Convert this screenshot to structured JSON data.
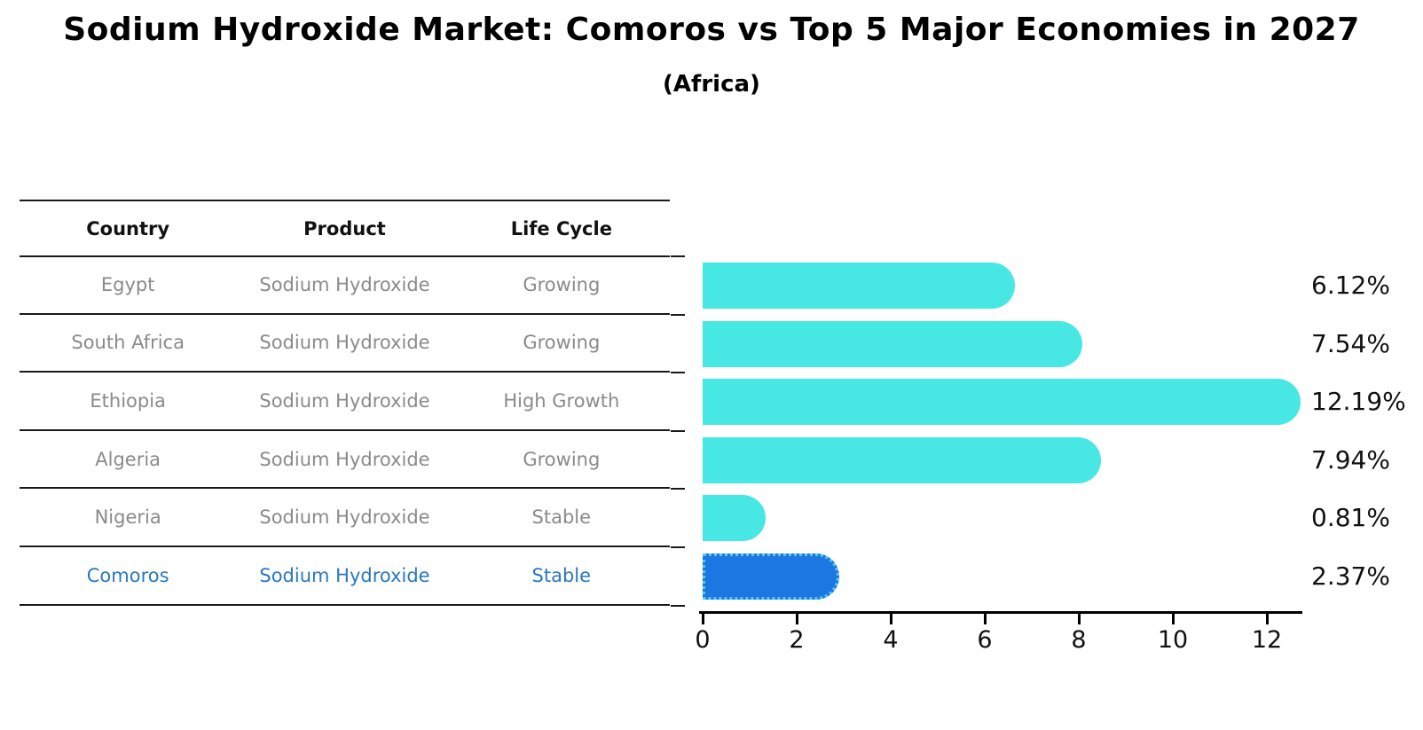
{
  "title": "Sodium Hydroxide Market: Comoros vs Top 5 Major Economies in 2027",
  "subtitle": "(Africa)",
  "table": {
    "headers": [
      "Country",
      "Product",
      "Life Cycle"
    ],
    "rows": [
      {
        "country": "Egypt",
        "product": "Sodium Hydroxide",
        "life_cycle": "Growing",
        "highlighted": false
      },
      {
        "country": "South Africa",
        "product": "Sodium Hydroxide",
        "life_cycle": "Growing",
        "highlighted": false
      },
      {
        "country": "Ethiopia",
        "product": "Sodium Hydroxide",
        "life_cycle": "High Growth",
        "highlighted": false
      },
      {
        "country": "Algeria",
        "product": "Sodium Hydroxide",
        "life_cycle": "Growing",
        "highlighted": false
      },
      {
        "country": "Nigeria",
        "product": "Sodium Hydroxide",
        "life_cycle": "Stable",
        "highlighted": false
      },
      {
        "country": "Comoros",
        "product": "Sodium Hydroxide",
        "life_cycle": "Stable",
        "highlighted": true
      }
    ]
  },
  "chart_data": {
    "type": "bar",
    "orientation": "horizontal",
    "title": "Sodium Hydroxide Market: Comoros vs Top 5 Major Economies in 2027",
    "subtitle": "(Africa)",
    "categories": [
      "Egypt",
      "South Africa",
      "Ethiopia",
      "Algeria",
      "Nigeria",
      "Comoros"
    ],
    "values": [
      6.12,
      7.54,
      12.19,
      7.94,
      0.81,
      2.37
    ],
    "value_labels": [
      "6.12%",
      "7.54%",
      "12.19%",
      "7.94%",
      "0.81%",
      "2.37%"
    ],
    "xlabel": "",
    "ylabel": "",
    "xlim": [
      0,
      12.75
    ],
    "xticks": [
      0,
      2,
      4,
      6,
      8,
      10,
      12
    ],
    "grid": false,
    "legend": false,
    "highlight_index": 5,
    "bar_color": "#47E7E4",
    "highlight_color": "#1C77E3",
    "highlight_border_color": "#56C8F0",
    "highlight_text_color": "#2878BE",
    "text_color": "#111111",
    "muted_text_color": "#8a8a8a"
  }
}
